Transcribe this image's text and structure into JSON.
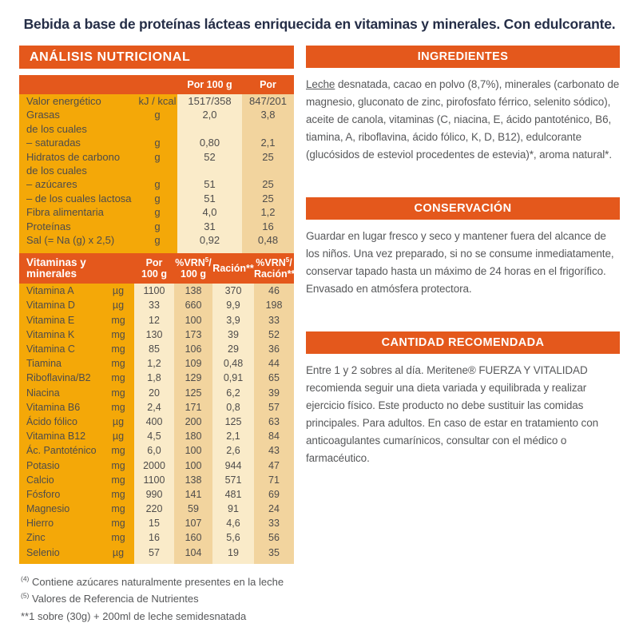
{
  "headline": "Bebida a base de proteínas lácteas enriquecida en vitaminas y minerales. Con edulcorante.",
  "colors": {
    "accent_orange": "#e4581c",
    "panel_yellow": "#f4a808",
    "column_cream": "#faebc9",
    "column_tan": "#f2d49e",
    "headline_navy": "#252e47",
    "body_gray": "#57585a"
  },
  "left_panel": {
    "title": "ANÁLISIS NUTRICIONAL",
    "macro_table": {
      "col_per100": "Por 100 g",
      "col_racion": "Por ración",
      "col_racion_sup": "(**)",
      "rows": [
        {
          "label": "Valor energético",
          "unit": "kJ / kcal",
          "per100": "1517/358",
          "racion": "847/201"
        },
        {
          "label": "Grasas",
          "unit": "g",
          "per100": "2,0",
          "racion": "3,8"
        },
        {
          "label": "de los cuales",
          "unit": "",
          "per100": "",
          "racion": ""
        },
        {
          "label": "– saturadas",
          "unit": "g",
          "per100": "0,80",
          "racion": "2,1"
        },
        {
          "label": "Hidratos de carbono",
          "unit": "g",
          "per100": "52",
          "racion": "25"
        },
        {
          "label": "de los cuales",
          "unit": "",
          "per100": "",
          "racion": ""
        },
        {
          "label": "– azúcares",
          "unit": "g",
          "per100": "51",
          "racion": "25"
        },
        {
          "label": "– de los cuales lactosa",
          "unit": "g",
          "per100": "51",
          "racion": "25"
        },
        {
          "label": "Fibra alimentaria",
          "unit": "g",
          "per100": "4,0",
          "racion": "1,2"
        },
        {
          "label": "Proteínas",
          "unit": "g",
          "per100": "31",
          "racion": "16"
        },
        {
          "label": "Sal (= Na (g) x 2,5)",
          "unit": "g",
          "per100": "0,92",
          "racion": "0,48"
        }
      ]
    },
    "vit_table": {
      "header": {
        "title": "Vitaminas y minerales",
        "c1_l1": "Por",
        "c1_l2": "100 g",
        "c2_l1": "%VRN",
        "c2_sup": "5",
        "c2_l1b": "/",
        "c2_l2": "100 g",
        "c3": "Ración**",
        "c4_l1": "%VRN",
        "c4_sup": "5",
        "c4_l1b": "/",
        "c4_l2": "Ración**"
      },
      "rows": [
        [
          "Vitamina A",
          "µg",
          "1100",
          "138",
          "370",
          "46"
        ],
        [
          "Vitamina D",
          "µg",
          "33",
          "660",
          "9,9",
          "198"
        ],
        [
          "Vitamina E",
          "mg",
          "12",
          "100",
          "3,9",
          "33"
        ],
        [
          "Vitamina K",
          "mg",
          "130",
          "173",
          "39",
          "52"
        ],
        [
          "Vitamina C",
          "mg",
          "85",
          "106",
          "29",
          "36"
        ],
        [
          "Tiamina",
          "mg",
          "1,2",
          "109",
          "0,48",
          "44"
        ],
        [
          "Riboflavina/B2",
          "mg",
          "1,8",
          "129",
          "0,91",
          "65"
        ],
        [
          "Niacina",
          "mg",
          "20",
          "125",
          "6,2",
          "39"
        ],
        [
          "Vitamina B6",
          "mg",
          "2,4",
          "171",
          "0,8",
          "57"
        ],
        [
          "Ácido fólico",
          "µg",
          "400",
          "200",
          "125",
          "63"
        ],
        [
          "Vitamina B12",
          "µg",
          "4,5",
          "180",
          "2,1",
          "84"
        ],
        [
          "Ác. Pantoténico",
          "mg",
          "6,0",
          "100",
          "2,6",
          "43"
        ],
        [
          "Potasio",
          "mg",
          "2000",
          "100",
          "944",
          "47"
        ],
        [
          "Calcio",
          "mg",
          "1100",
          "138",
          "571",
          "71"
        ],
        [
          "Fósforo",
          "mg",
          "990",
          "141",
          "481",
          "69"
        ],
        [
          "Magnesio",
          "mg",
          "220",
          "59",
          "91",
          "24"
        ],
        [
          "Hierro",
          "mg",
          "15",
          "107",
          "4,6",
          "33"
        ],
        [
          "Zinc",
          "mg",
          "16",
          "160",
          "5,6",
          "56"
        ],
        [
          "Selenio",
          "µg",
          "57",
          "104",
          "19",
          "35"
        ]
      ]
    }
  },
  "right_panel": {
    "ingredients": {
      "title": "INGREDIENTES",
      "allergen": "Leche",
      "text": " desnatada, cacao en polvo (8,7%), minerales (carbonato de magnesio, gluconato de zinc, pirofosfato férrico, selenito sódico), aceite de canola, vitaminas (C, niacina, E, ácido pantoténico, B6, tiamina, A, riboflavina, ácido fólico, K, D, B12), edulcorante (glucósidos de esteviol procedentes de estevia)*, aroma natural*."
    },
    "conservation": {
      "title": "CONSERVACIÓN",
      "text": "Guardar en lugar fresco y seco y mantener fuera del alcance de los niños. Una vez preparado, si no se consume inmediatamente, conservar tapado hasta un máximo de 24 horas en el frigorífico. Envasado en atmósfera protectora."
    },
    "recommended": {
      "title": "CANTIDAD RECOMENDADA",
      "text": "Entre 1 y 2 sobres al día. Meritene® FUERZA Y VITALIDAD recomienda seguir una dieta variada y equilibrada y realizar ejercicio físico. Este producto no debe sustituir las comidas principales. Para adultos. En caso de estar en tratamiento con anticoagulantes cumarínicos, consultar con el médico o farmacéutico."
    }
  },
  "footnotes": [
    {
      "marker": "(4)",
      "sup": true,
      "text": "Contiene azúcares naturalmente presentes en la leche"
    },
    {
      "marker": "(5)",
      "sup": true,
      "text": "Valores de Referencia de Nutrientes"
    },
    {
      "marker": "**",
      "sup": false,
      "text": "1 sobre (30g) + 200ml de leche semidesnatada"
    }
  ]
}
